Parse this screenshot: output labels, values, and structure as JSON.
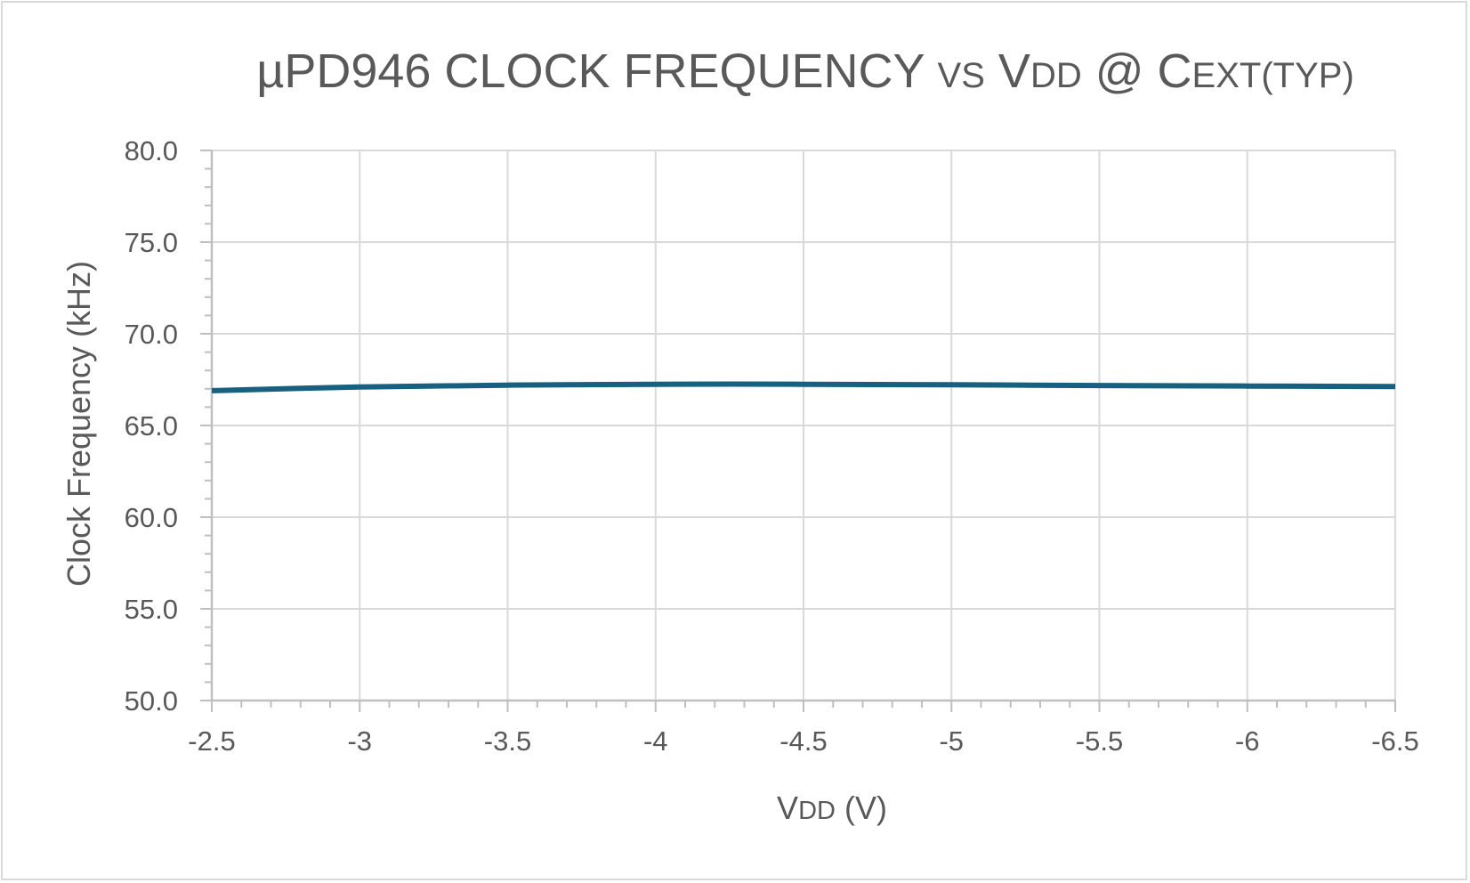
{
  "chart_data": {
    "type": "line",
    "title": {
      "prefix": "µPD946 CLOCK FREQUENCY ",
      "vs": "VS",
      "v": " V",
      "dd": "DD",
      "at": " @ C",
      "ext": "EXT(TYP)"
    },
    "xlabel": {
      "v": "V",
      "dd": "DD",
      "unit": " (V)"
    },
    "ylabel": "Clock Frequency (kHz)",
    "xlim": [
      -2.5,
      -6.5
    ],
    "ylim": [
      50,
      80
    ],
    "x_ticks": [
      -2.5,
      -3,
      -3.5,
      -4,
      -4.5,
      -5,
      -5.5,
      -6,
      -6.5
    ],
    "x_tick_labels": [
      "-2.5",
      "-3",
      "-3.5",
      "-4",
      "-4.5",
      "-5",
      "-5.5",
      "-6",
      "-6.5"
    ],
    "y_ticks": [
      50,
      55,
      60,
      65,
      70,
      75,
      80
    ],
    "y_tick_labels": [
      "50.0",
      "55.0",
      "60.0",
      "65.0",
      "70.0",
      "75.0",
      "80.0"
    ],
    "x_minor_step": 0.1,
    "y_minor_step": 1,
    "grid": true,
    "legend": "none",
    "series": [
      {
        "color": "#17607f",
        "x": [
          -2.5,
          -3,
          -3.5,
          -4,
          -4.5,
          -5,
          -5.5,
          -6,
          -6.5
        ],
        "y": [
          66.9,
          67.1,
          67.2,
          67.25,
          67.25,
          67.22,
          67.18,
          67.15,
          67.12
        ]
      }
    ]
  }
}
